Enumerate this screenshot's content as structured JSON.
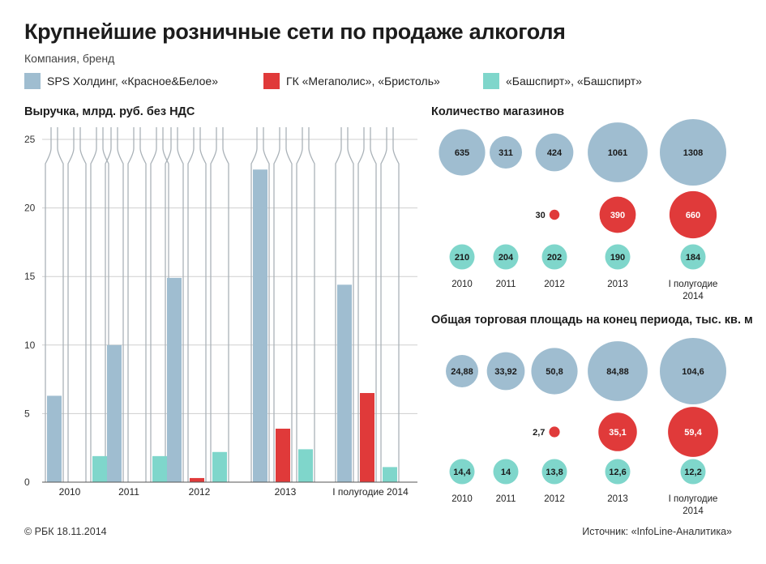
{
  "title": "Крупнейшие розничные сети по продаже алкоголя",
  "subtitle": "Компания, бренд",
  "colors": {
    "sps": "#9fbdd0",
    "gk": "#e03a3a",
    "bash": "#7fd6cb",
    "outline": "#aab2b8",
    "grid": "#cfcfcf"
  },
  "legend": [
    {
      "label": "SPS Холдинг, «Красное&Белое»",
      "color": "#9fbdd0"
    },
    {
      "label": "ГК «Мегаполис», «Бристоль»",
      "color": "#e03a3a"
    },
    {
      "label": "«Башспирт», «Башспирт»",
      "color": "#7fd6cb"
    }
  ],
  "revenue_title": "Выручка, млрд. руб. без НДС",
  "stores_title": "Количество магазинов",
  "area_title": "Общая торговая площадь на конец периода, тыс. кв. м",
  "footer_left": "© РБК 18.11.2014",
  "footer_right": "Источник: «InfoLine-Аналитика»",
  "chart_data": [
    {
      "type": "bar",
      "title": "Выручка, млрд. руб. без НДС",
      "categories": [
        "2010",
        "2011",
        "2012",
        "2013",
        "I полугодие 2014"
      ],
      "series": [
        {
          "name": "SPS Холдинг, «Красное&Белое»",
          "values": [
            6.3,
            10.0,
            14.9,
            22.8,
            14.4
          ]
        },
        {
          "name": "ГК «Мегаполис», «Бристоль»",
          "values": [
            null,
            null,
            0.3,
            3.9,
            6.5
          ]
        },
        {
          "name": "«Башспирт», «Башспирт»",
          "values": [
            1.9,
            1.9,
            2.2,
            2.4,
            1.1
          ]
        }
      ],
      "yticks": [
        0,
        5,
        10,
        15,
        20,
        25
      ],
      "ylim": [
        0,
        25
      ],
      "grid": true
    },
    {
      "type": "scatter",
      "title": "Количество магазинов",
      "categories": [
        "2010",
        "2011",
        "2012",
        "2013",
        "I полугодие 2014"
      ],
      "series": [
        {
          "name": "SPS Холдинг, «Красное&Белое»",
          "values": [
            635,
            311,
            424,
            1061,
            1308
          ],
          "labels": [
            "635",
            "311",
            "424",
            "1061",
            "1308"
          ]
        },
        {
          "name": "ГК «Мегаполис», «Бристоль»",
          "values": [
            null,
            null,
            30,
            390,
            660
          ],
          "labels": [
            "",
            "",
            "30",
            "390",
            "660"
          ]
        },
        {
          "name": "«Башспирт», «Башспирт»",
          "values": [
            210,
            204,
            202,
            190,
            184
          ],
          "labels": [
            "210",
            "204",
            "202",
            "190",
            "184"
          ]
        }
      ]
    },
    {
      "type": "scatter",
      "title": "Общая торговая площадь на конец периода, тыс. кв. м",
      "categories": [
        "2010",
        "2011",
        "2012",
        "2013",
        "I полугодие 2014"
      ],
      "series": [
        {
          "name": "SPS Холдинг, «Красное&Белое»",
          "values": [
            24.88,
            33.92,
            50.8,
            84.88,
            104.6
          ],
          "labels": [
            "24,88",
            "33,92",
            "50,8",
            "84,88",
            "104,6"
          ]
        },
        {
          "name": "ГК «Мегаполис», «Бристоль»",
          "values": [
            null,
            null,
            2.7,
            35.1,
            59.4
          ],
          "labels": [
            "",
            "",
            "2,7",
            "35,1",
            "59,4"
          ]
        },
        {
          "name": "«Башспирт», «Башспирт»",
          "values": [
            14.4,
            14,
            13.8,
            12.6,
            12.2
          ],
          "labels": [
            "14,4",
            "14",
            "13,8",
            "12,6",
            "12,2"
          ]
        }
      ]
    }
  ]
}
